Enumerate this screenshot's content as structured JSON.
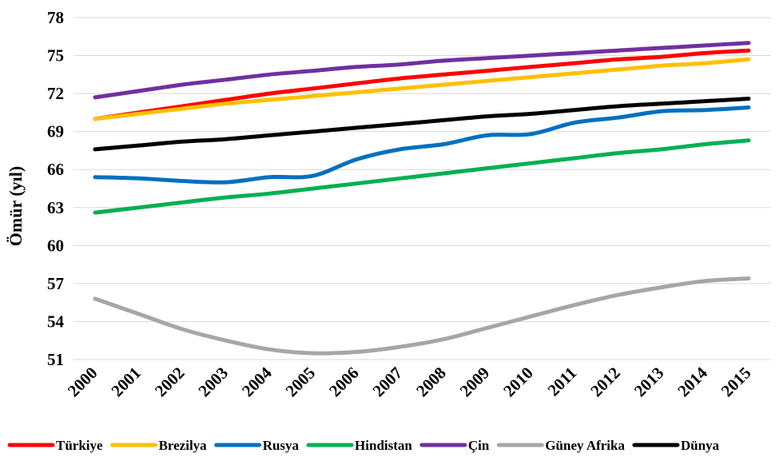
{
  "chart_data": {
    "type": "line",
    "title": "",
    "xlabel": "",
    "ylabel": "Ömür (yıl)",
    "ylim": [
      51,
      78
    ],
    "yticks": [
      51,
      54,
      57,
      60,
      63,
      66,
      69,
      72,
      75,
      78
    ],
    "grid": true,
    "legend_position": "bottom",
    "categories": [
      "2000",
      "2001",
      "2002",
      "2003",
      "2004",
      "2005",
      "2006",
      "2007",
      "2008",
      "2009",
      "2010",
      "2011",
      "2012",
      "2013",
      "2014",
      "2015"
    ],
    "series": [
      {
        "name": "Türkiye",
        "color": "#ff0000",
        "values": [
          70.0,
          70.5,
          71.0,
          71.5,
          72.0,
          72.4,
          72.8,
          73.2,
          73.5,
          73.8,
          74.1,
          74.4,
          74.7,
          74.9,
          75.2,
          75.4
        ]
      },
      {
        "name": "Brezilya",
        "color": "#ffc000",
        "values": [
          70.0,
          70.4,
          70.8,
          71.2,
          71.5,
          71.8,
          72.1,
          72.4,
          72.7,
          73.0,
          73.3,
          73.6,
          73.9,
          74.2,
          74.4,
          74.7
        ]
      },
      {
        "name": "Rusya",
        "color": "#0070c0",
        "values": [
          65.4,
          65.3,
          65.1,
          65.0,
          65.4,
          65.5,
          66.8,
          67.6,
          68.0,
          68.7,
          68.8,
          69.7,
          70.1,
          70.6,
          70.7,
          70.9
        ]
      },
      {
        "name": "Hindistan",
        "color": "#00b050",
        "values": [
          62.6,
          63.0,
          63.4,
          63.8,
          64.1,
          64.5,
          64.9,
          65.3,
          65.7,
          66.1,
          66.5,
          66.9,
          67.3,
          67.6,
          68.0,
          68.3
        ]
      },
      {
        "name": "Çin",
        "color": "#7030a0",
        "values": [
          71.7,
          72.2,
          72.7,
          73.1,
          73.5,
          73.8,
          74.1,
          74.3,
          74.6,
          74.8,
          75.0,
          75.2,
          75.4,
          75.6,
          75.8,
          76.0
        ]
      },
      {
        "name": "Güney Afrika",
        "color": "#a6a6a6",
        "values": [
          55.8,
          54.6,
          53.4,
          52.5,
          51.8,
          51.5,
          51.6,
          52.0,
          52.6,
          53.5,
          54.4,
          55.3,
          56.1,
          56.7,
          57.2,
          57.4
        ]
      },
      {
        "name": "Dünya",
        "color": "#000000",
        "values": [
          67.6,
          67.9,
          68.2,
          68.4,
          68.7,
          69.0,
          69.3,
          69.6,
          69.9,
          70.2,
          70.4,
          70.7,
          71.0,
          71.2,
          71.4,
          71.6
        ]
      }
    ]
  }
}
